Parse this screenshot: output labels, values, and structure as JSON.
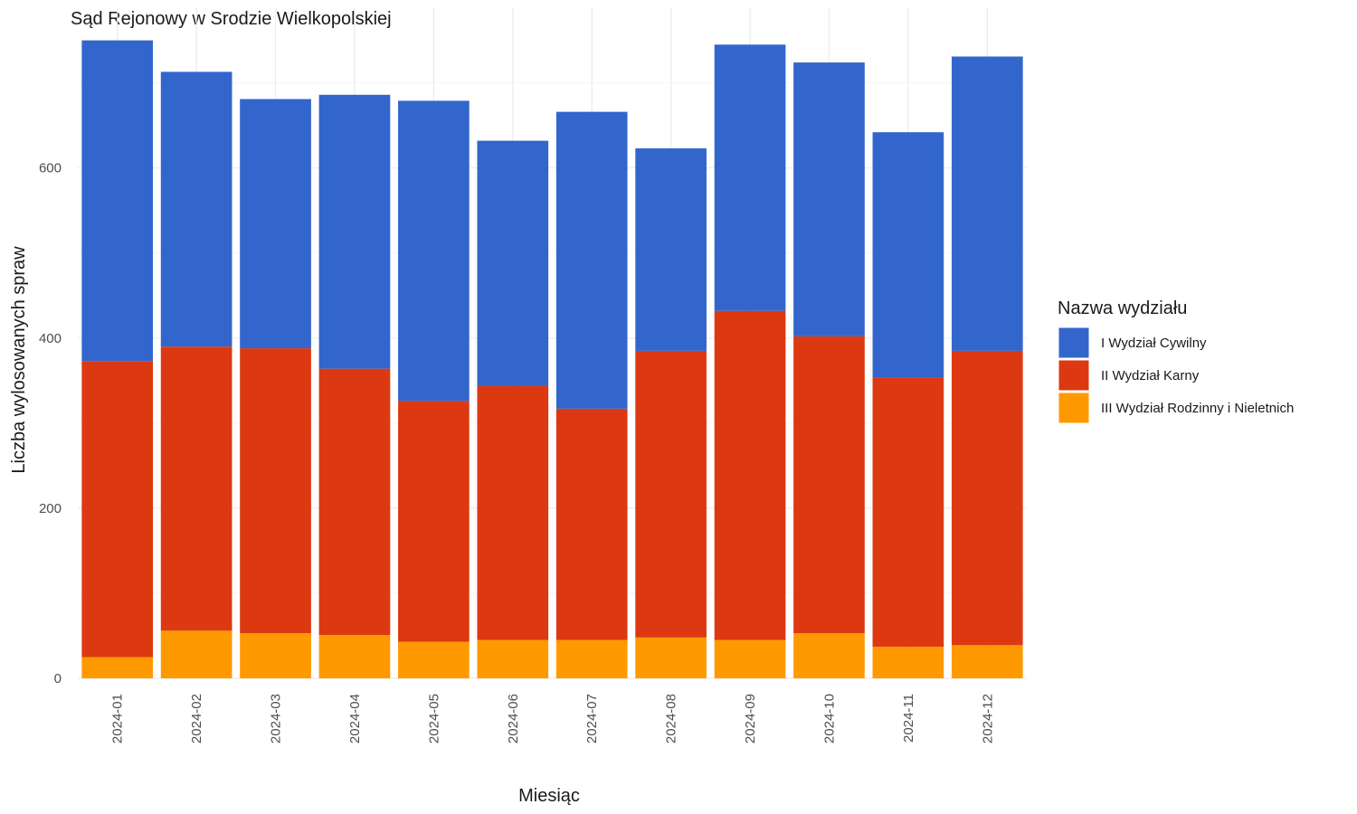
{
  "chart_data": {
    "type": "bar",
    "stacked": true,
    "title": "Sąd Rejonowy w Srodzie Wielkopolskiej",
    "xlabel": "Miesiąc",
    "ylabel": "Liczba wylosowanych spraw",
    "ylim": [
      0,
      790
    ],
    "yticks": [
      0,
      200,
      400,
      600
    ],
    "grid": true,
    "legend": {
      "title": "Nazwa wydziału",
      "position": "right"
    },
    "categories": [
      "2024-01",
      "2024-02",
      "2024-03",
      "2024-04",
      "2024-05",
      "2024-06",
      "2024-07",
      "2024-08",
      "2024-09",
      "2024-10",
      "2024-11",
      "2024-12"
    ],
    "series": [
      {
        "name": "III Wydział Rodzinny i Nieletnich",
        "color": "#FF9900",
        "values": [
          25,
          56,
          53,
          51,
          43,
          45,
          45,
          48,
          45,
          53,
          37,
          39
        ]
      },
      {
        "name": "II Wydział Karny",
        "color": "#DC3912",
        "values": [
          348,
          334,
          335,
          313,
          283,
          299,
          272,
          337,
          387,
          349,
          317,
          346
        ]
      },
      {
        "name": "I Wydział Cywilny",
        "color": "#3366CC",
        "values": [
          377,
          323,
          293,
          322,
          353,
          288,
          349,
          238,
          313,
          322,
          288,
          346
        ]
      }
    ]
  }
}
